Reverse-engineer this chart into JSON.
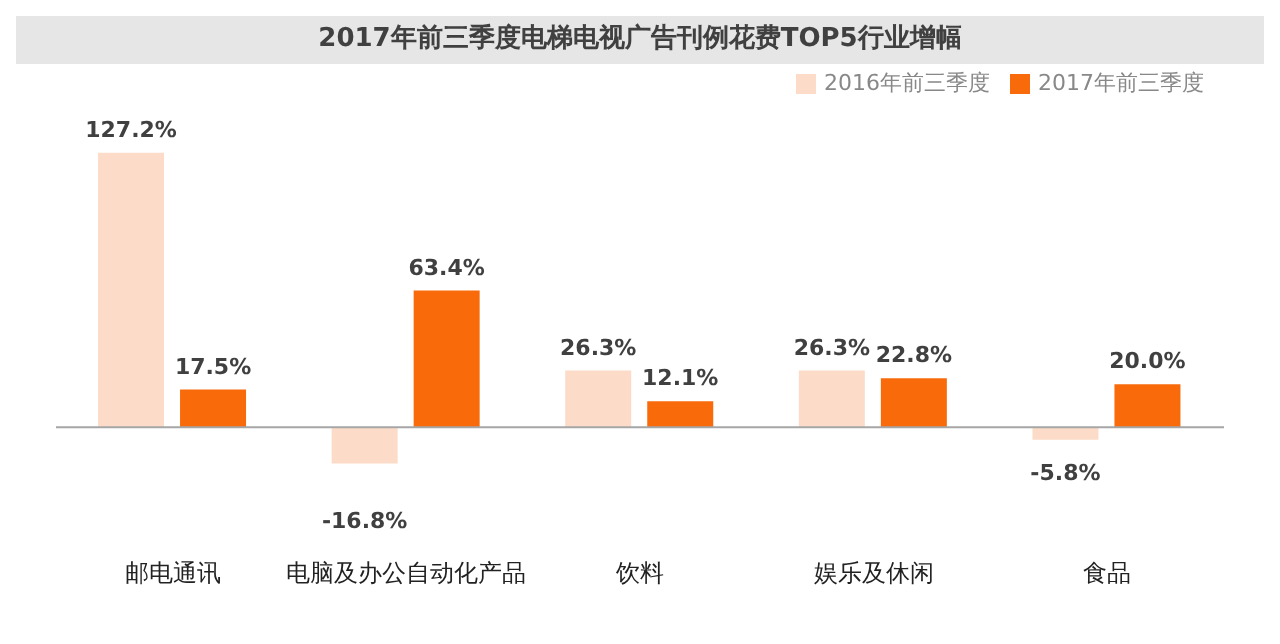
{
  "chart_data": {
    "type": "bar",
    "title": "2017年前三季度电梯电视广告刊例花费TOP5行业增幅",
    "categories": [
      "邮电通讯",
      "电脑及办公自动化产品",
      "饮料",
      "娱乐及休闲",
      "食品"
    ],
    "series": [
      {
        "name": "2016年前三季度",
        "color": "#fcdcc8",
        "values": [
          127.2,
          -16.8,
          26.3,
          26.3,
          -5.8
        ],
        "value_labels": [
          "127.2%",
          "-16.8%",
          "26.3%",
          "26.3%",
          "-5.8%"
        ]
      },
      {
        "name": "2017年前三季度",
        "color": "#f96a0a",
        "values": [
          17.5,
          63.4,
          12.1,
          22.8,
          20.0
        ],
        "value_labels": [
          "17.5%",
          "63.4%",
          "12.1%",
          "22.8%",
          "20.0%"
        ]
      }
    ],
    "legend": "top right",
    "grid": false
  }
}
